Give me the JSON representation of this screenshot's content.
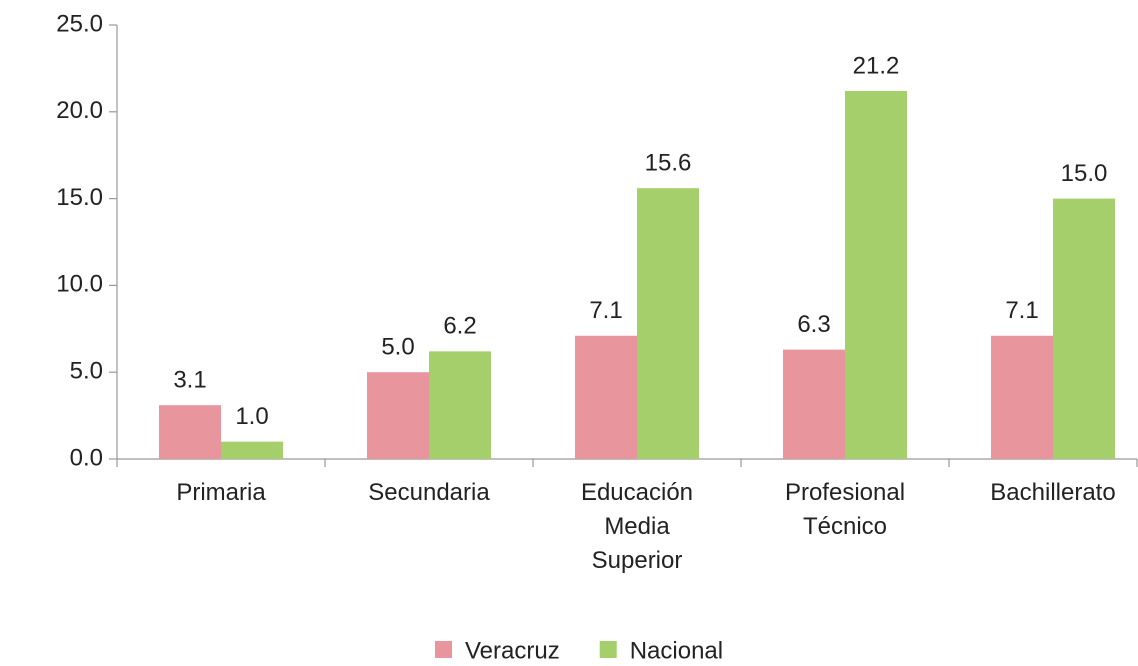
{
  "chart_data": {
    "type": "bar",
    "categories": [
      "Primaria",
      "Secundaria",
      "Educación Media Superior",
      "Profesional Técnico",
      "Bachillerato"
    ],
    "series": [
      {
        "name": "Veracruz",
        "color": "#e8959e",
        "values": [
          3.1,
          5.0,
          7.1,
          6.3,
          7.1
        ],
        "value_labels": [
          "3.1",
          "5.0",
          "7.1",
          "6.3",
          "7.1"
        ]
      },
      {
        "name": "Nacional",
        "color": "#a5cf6b",
        "values": [
          1.0,
          6.2,
          15.6,
          21.2,
          15.0
        ],
        "value_labels": [
          "1.0",
          "6.2",
          "15.6",
          "21.2",
          "15.0"
        ]
      }
    ],
    "ylim": [
      0,
      25
    ],
    "yticks": [
      {
        "value": 0,
        "label": "0.0"
      },
      {
        "value": 5,
        "label": "5.0"
      },
      {
        "value": 10,
        "label": "10.0"
      },
      {
        "value": 15,
        "label": "15.0"
      },
      {
        "value": 20,
        "label": "20.0"
      },
      {
        "value": 25,
        "label": "25.0"
      }
    ],
    "grid": false,
    "legend": "bottom"
  }
}
